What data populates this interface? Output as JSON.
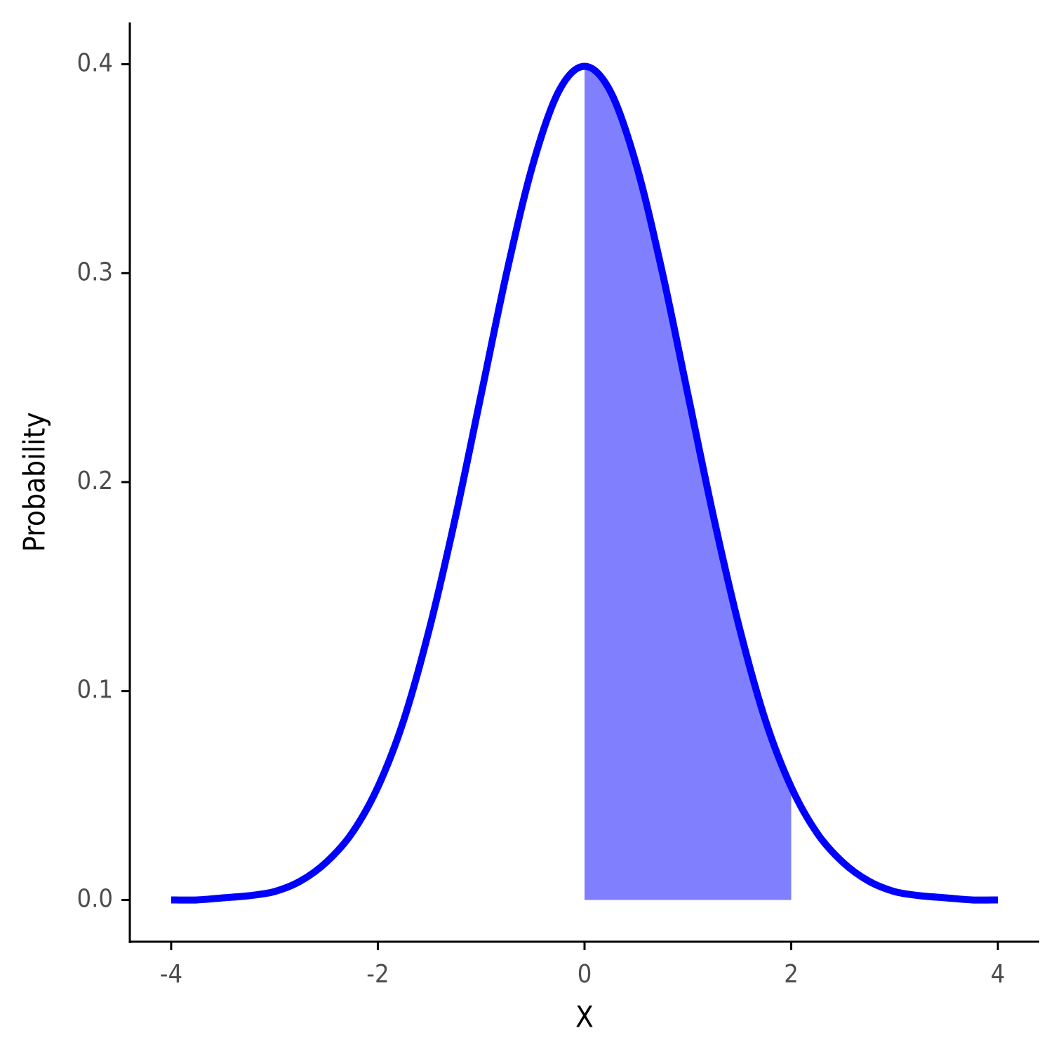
{
  "chart_data": {
    "type": "line",
    "xlabel": "X",
    "ylabel": "Probability",
    "xlim": [
      -4.4,
      4.4
    ],
    "ylim": [
      -0.02,
      0.42
    ],
    "xticks": [
      -4,
      -2,
      0,
      2,
      4
    ],
    "yticks": [
      {
        "value": 0,
        "label": "0.0"
      },
      0.1,
      0.2,
      0.3,
      0.4
    ],
    "series": [
      {
        "color": "#0000ff",
        "x": [
          -4,
          -3.75,
          -3.5,
          -3.25,
          -3,
          -2.75,
          -2.5,
          -2.25,
          -2,
          -1.75,
          -1.5,
          -1.25,
          -1,
          -0.75,
          -0.5,
          -0.25,
          0,
          0.25,
          0.5,
          0.75,
          1,
          1.25,
          1.5,
          1.75,
          2,
          2.25,
          2.5,
          2.75,
          3,
          3.25,
          3.5,
          3.75,
          4
        ],
        "values": [
          0.0,
          0.0,
          0.001,
          0.002,
          0.004,
          0.009,
          0.018,
          0.032,
          0.054,
          0.086,
          0.13,
          0.183,
          0.242,
          0.301,
          0.352,
          0.387,
          0.399,
          0.387,
          0.352,
          0.301,
          0.242,
          0.183,
          0.13,
          0.086,
          0.054,
          0.032,
          0.018,
          0.009,
          0.004,
          0.002,
          0.001,
          0.0,
          0.0
        ]
      }
    ],
    "area": {
      "color": "#8080ff",
      "x": [
        0,
        0.25,
        0.5,
        0.75,
        1,
        1.25,
        1.5,
        1.75,
        2
      ],
      "values": [
        0.399,
        0.387,
        0.352,
        0.301,
        0.242,
        0.183,
        0.13,
        0.086,
        0.054
      ]
    }
  }
}
